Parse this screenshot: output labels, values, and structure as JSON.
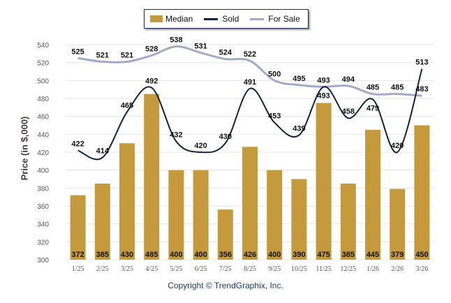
{
  "chart_data": {
    "type": "bar",
    "title": "",
    "xlabel": "",
    "ylabel": "Price (in $,000)",
    "ylim": [
      300,
      540
    ],
    "yticks": [
      300,
      320,
      340,
      360,
      380,
      400,
      420,
      440,
      460,
      480,
      500,
      520,
      540
    ],
    "grid": true,
    "legend_position": "top-center",
    "categories": [
      "1/25",
      "2/25",
      "3/25",
      "4/25",
      "5/25",
      "6/25",
      "7/25",
      "8/25",
      "9/25",
      "10/25",
      "11/25",
      "12/25",
      "1/26",
      "2/26",
      "3/26"
    ],
    "series": [
      {
        "name": "Median",
        "type": "bar",
        "color": "#c49a3c",
        "values": [
          372,
          385,
          430,
          485,
          400,
          400,
          356,
          426,
          400,
          390,
          475,
          385,
          445,
          379,
          450
        ]
      },
      {
        "name": "Sold",
        "type": "line",
        "color": "#0f2345",
        "values": [
          422,
          414,
          465,
          492,
          432,
          420,
          430,
          491,
          453,
          439,
          493,
          458,
          479,
          420,
          513
        ]
      },
      {
        "name": "For Sale",
        "type": "line",
        "color": "#a3aac8",
        "values": [
          525,
          521,
          521,
          528,
          538,
          531,
          524,
          522,
          500,
          495,
          493,
          494,
          485,
          485,
          483
        ]
      }
    ]
  },
  "legend": {
    "median": "Median",
    "sold": "Sold",
    "for_sale": "For Sale"
  },
  "footer": {
    "copyright": "Copyright © TrendGraphix, Inc."
  }
}
